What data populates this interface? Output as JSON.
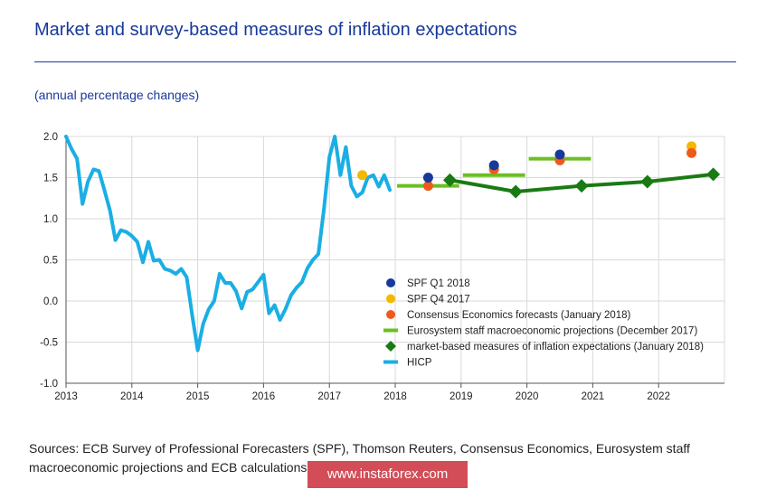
{
  "title": "Market and survey-based measures of inflation expectations",
  "subtitle": "(annual percentage changes)",
  "source_text": "Sources: ECB Survey of Professional Forecasters (SPF), Thomson Reuters, Consensus Economics, Eurosystem staff macroeconomic projections and ECB calculations.",
  "watermark": "www.instaforex.com",
  "colors": {
    "hicp": "#1aaee5",
    "spf_q1": "#17399a",
    "spf_q4": "#f5b800",
    "consensus": "#ef5a1c",
    "eurosystem": "#6abf22",
    "market": "#1a7a14",
    "title": "#17399a"
  },
  "chart_data": {
    "type": "line",
    "title": "Market and survey-based measures of inflation expectations",
    "ylabel": "annual percentage changes",
    "xlabel": "",
    "xlim": [
      2013,
      2023
    ],
    "ylim": [
      -1.0,
      2.0
    ],
    "x_ticks": [
      "2013",
      "2014",
      "2015",
      "2016",
      "2017",
      "2018",
      "2019",
      "2020",
      "2021",
      "2022"
    ],
    "y_ticks": [
      "2.0",
      "1.5",
      "1.0",
      "0.5",
      "0.0",
      "-0.5",
      "-1.0"
    ],
    "grid": true,
    "legend_position": "lower-right",
    "legend": [
      "SPF Q1 2018",
      "SPF Q4 2017",
      "Consensus Economics forecasts (January 2018)",
      "Eurosystem staff macroeconomic projections (December 2017)",
      "market-based measures of inflation expectations (January 2018)",
      "HICP"
    ],
    "series": [
      {
        "name": "HICP",
        "style": "line",
        "x": [
          2013.0,
          2013.083,
          2013.167,
          2013.25,
          2013.333,
          2013.417,
          2013.5,
          2013.583,
          2013.667,
          2013.75,
          2013.833,
          2013.917,
          2014.0,
          2014.083,
          2014.167,
          2014.25,
          2014.333,
          2014.417,
          2014.5,
          2014.583,
          2014.667,
          2014.75,
          2014.833,
          2014.917,
          2015.0,
          2015.083,
          2015.167,
          2015.25,
          2015.333,
          2015.417,
          2015.5,
          2015.583,
          2015.667,
          2015.75,
          2015.833,
          2015.917,
          2016.0,
          2016.083,
          2016.167,
          2016.25,
          2016.333,
          2016.417,
          2016.5,
          2016.583,
          2016.667,
          2016.75,
          2016.833,
          2016.917,
          2017.0,
          2017.083,
          2017.167,
          2017.25,
          2017.333,
          2017.417,
          2017.5,
          2017.583,
          2017.667,
          2017.75,
          2017.833,
          2017.917
        ],
        "values": [
          2.0,
          1.85,
          1.73,
          1.18,
          1.45,
          1.6,
          1.58,
          1.35,
          1.1,
          0.74,
          0.86,
          0.84,
          0.79,
          0.72,
          0.47,
          0.72,
          0.49,
          0.5,
          0.39,
          0.37,
          0.33,
          0.39,
          0.29,
          -0.18,
          -0.6,
          -0.28,
          -0.1,
          0.0,
          0.33,
          0.22,
          0.22,
          0.12,
          -0.09,
          0.11,
          0.14,
          0.23,
          0.32,
          -0.15,
          -0.05,
          -0.23,
          -0.1,
          0.07,
          0.16,
          0.23,
          0.4,
          0.5,
          0.57,
          1.12,
          1.75,
          2.0,
          1.53,
          1.87,
          1.4,
          1.27,
          1.32,
          1.5,
          1.53,
          1.39,
          1.53,
          1.35
        ]
      },
      {
        "name": "SPF Q1 2018",
        "style": "dot",
        "x": [
          2018.5,
          2019.5,
          2020.5
        ],
        "values": [
          1.5,
          1.65,
          1.78
        ]
      },
      {
        "name": "SPF Q4 2017",
        "style": "dot",
        "x": [
          2017.5,
          2019.5,
          2022.5
        ],
        "values": [
          1.53,
          1.63,
          1.88
        ]
      },
      {
        "name": "Consensus Economics forecasts (January 2018)",
        "style": "dot",
        "x": [
          2018.5,
          2019.5,
          2020.5,
          2022.5
        ],
        "values": [
          1.4,
          1.6,
          1.71,
          1.8
        ]
      },
      {
        "name": "Eurosystem staff macroeconomic projections (December 2017)",
        "style": "segments",
        "segments": [
          {
            "x": [
              2018.0,
              2019.0
            ],
            "y": 1.4
          },
          {
            "x": [
              2019.0,
              2020.0
            ],
            "y": 1.53
          },
          {
            "x": [
              2020.0,
              2021.0
            ],
            "y": 1.73
          }
        ]
      },
      {
        "name": "market-based measures of inflation expectations (January 2018)",
        "style": "line-diamond",
        "x": [
          2018.83,
          2019.83,
          2020.83,
          2021.83,
          2022.83
        ],
        "values": [
          1.47,
          1.33,
          1.4,
          1.45,
          1.54
        ]
      }
    ]
  }
}
